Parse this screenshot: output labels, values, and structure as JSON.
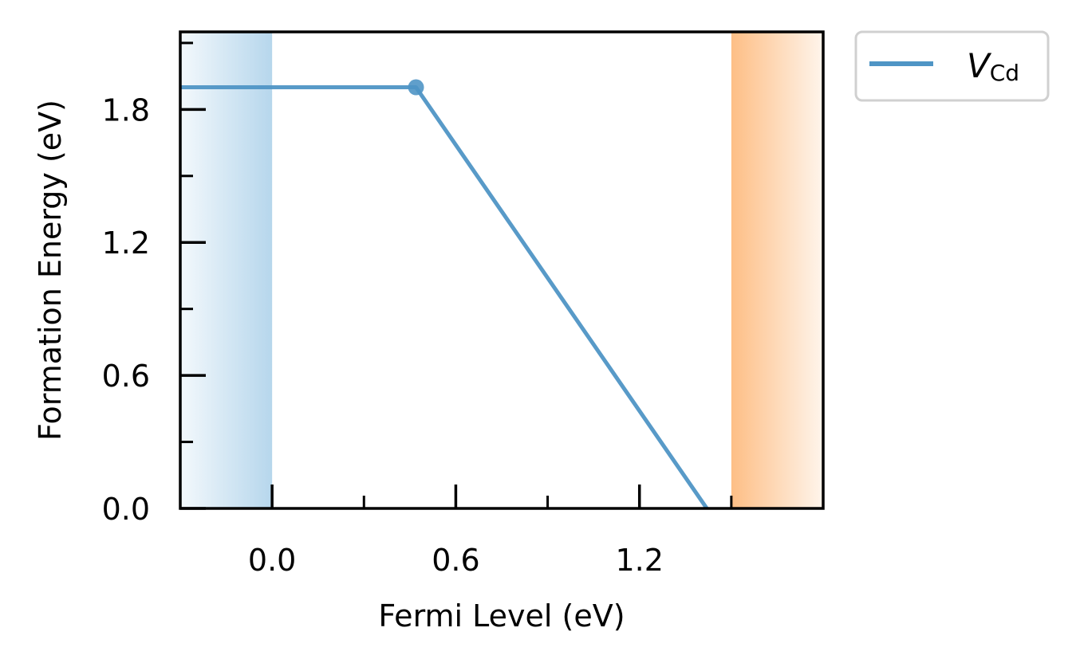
{
  "chart_data": {
    "type": "line",
    "title": "",
    "xlabel": "Fermi Level (eV)",
    "ylabel": "Formation Energy (eV)",
    "xlim": [
      -0.3,
      1.8
    ],
    "ylim": [
      0.0,
      2.15
    ],
    "x_ticks": [
      {
        "value": 0.0,
        "label": "0.0"
      },
      {
        "value": 0.6,
        "label": "0.6"
      },
      {
        "value": 1.2,
        "label": "1.2"
      }
    ],
    "x_minor_ticks": [
      0.3,
      0.9,
      1.5
    ],
    "y_ticks": [
      {
        "value": 0.0,
        "label": "0.0"
      },
      {
        "value": 0.6,
        "label": "0.6"
      },
      {
        "value": 1.2,
        "label": "1.2"
      },
      {
        "value": 1.8,
        "label": "1.8"
      }
    ],
    "y_minor_ticks": [
      0.3,
      0.9,
      1.5,
      2.1
    ],
    "valence_band_region": {
      "x_start": -0.3,
      "x_end": 0.0,
      "color": "#9ec9e6"
    },
    "conduction_band_region": {
      "x_start": 1.5,
      "x_end": 1.8,
      "color": "#fdbb7f"
    },
    "series": [
      {
        "name": "V",
        "name_subscript": "Cd",
        "color": "#4f95c5",
        "points": [
          {
            "x": -0.3,
            "y": 1.9
          },
          {
            "x": 0.47,
            "y": 1.9
          },
          {
            "x": 1.42,
            "y": 0.0
          }
        ],
        "transition_levels": [
          {
            "x": 0.47,
            "y": 1.9
          }
        ]
      }
    ],
    "legend": {
      "placement": "outside-top-right"
    }
  }
}
